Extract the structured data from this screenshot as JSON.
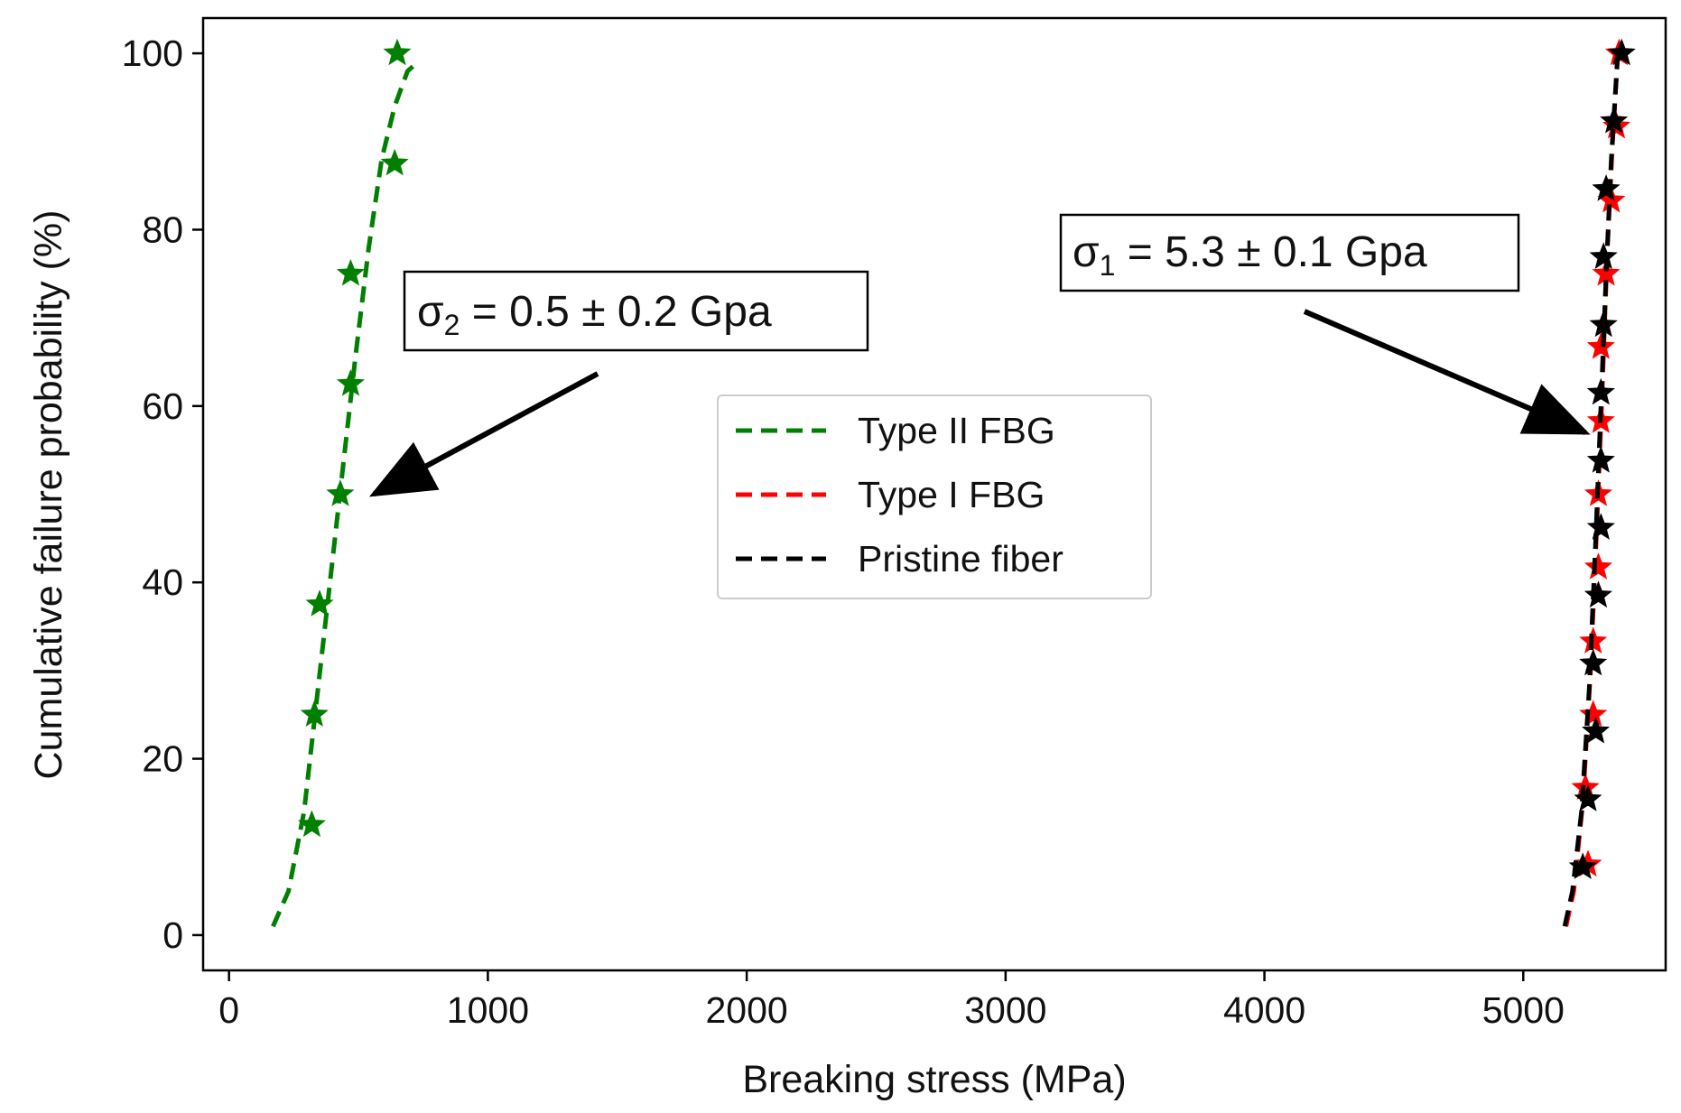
{
  "chart_data": {
    "type": "scatter",
    "xlabel": "Breaking stress (MPa)",
    "ylabel": "Cumulative failure probability (%)",
    "xlim": [
      -100,
      5550
    ],
    "ylim": [
      -4,
      104
    ],
    "xticks": [
      0,
      1000,
      2000,
      3000,
      4000,
      5000
    ],
    "yticks": [
      0,
      20,
      40,
      60,
      80,
      100
    ],
    "grid": false,
    "legend_position": "center",
    "series": [
      {
        "name": "Type II FBG",
        "color": "#007f00",
        "points": [
          {
            "x": 320,
            "y": 12.5
          },
          {
            "x": 330,
            "y": 25
          },
          {
            "x": 350,
            "y": 37.5
          },
          {
            "x": 430,
            "y": 50
          },
          {
            "x": 470,
            "y": 62.5
          },
          {
            "x": 470,
            "y": 75
          },
          {
            "x": 640,
            "y": 87.5
          },
          {
            "x": 650,
            "y": 100
          }
        ],
        "fit": [
          {
            "x": 170,
            "y": 1
          },
          {
            "x": 230,
            "y": 5
          },
          {
            "x": 290,
            "y": 14
          },
          {
            "x": 340,
            "y": 27
          },
          {
            "x": 390,
            "y": 40
          },
          {
            "x": 440,
            "y": 53
          },
          {
            "x": 490,
            "y": 66
          },
          {
            "x": 540,
            "y": 78
          },
          {
            "x": 590,
            "y": 88
          },
          {
            "x": 640,
            "y": 94
          },
          {
            "x": 690,
            "y": 98
          },
          {
            "x": 730,
            "y": 99
          }
        ]
      },
      {
        "name": "Type I FBG",
        "color": "#ff0000",
        "points": [
          {
            "x": 5250,
            "y": 8
          },
          {
            "x": 5240,
            "y": 16.7
          },
          {
            "x": 5270,
            "y": 25
          },
          {
            "x": 5270,
            "y": 33.3
          },
          {
            "x": 5290,
            "y": 41.7
          },
          {
            "x": 5290,
            "y": 50
          },
          {
            "x": 5300,
            "y": 58.3
          },
          {
            "x": 5300,
            "y": 66.7
          },
          {
            "x": 5320,
            "y": 75
          },
          {
            "x": 5340,
            "y": 83.3
          },
          {
            "x": 5360,
            "y": 91.7
          },
          {
            "x": 5370,
            "y": 100
          }
        ],
        "fit": [
          {
            "x": 5165,
            "y": 1
          },
          {
            "x": 5195,
            "y": 5
          },
          {
            "x": 5230,
            "y": 15
          },
          {
            "x": 5260,
            "y": 30
          },
          {
            "x": 5285,
            "y": 47
          },
          {
            "x": 5305,
            "y": 62
          },
          {
            "x": 5325,
            "y": 78
          },
          {
            "x": 5345,
            "y": 90
          },
          {
            "x": 5365,
            "y": 100
          }
        ]
      },
      {
        "name": "Pristine fiber",
        "color": "#000000",
        "points": [
          {
            "x": 5230,
            "y": 7.7
          },
          {
            "x": 5250,
            "y": 15.4
          },
          {
            "x": 5280,
            "y": 23.1
          },
          {
            "x": 5270,
            "y": 30.8
          },
          {
            "x": 5290,
            "y": 38.5
          },
          {
            "x": 5300,
            "y": 46.2
          },
          {
            "x": 5300,
            "y": 53.8
          },
          {
            "x": 5300,
            "y": 61.5
          },
          {
            "x": 5310,
            "y": 69.2
          },
          {
            "x": 5310,
            "y": 76.9
          },
          {
            "x": 5320,
            "y": 84.6
          },
          {
            "x": 5350,
            "y": 92.3
          },
          {
            "x": 5380,
            "y": 100
          }
        ],
        "fit": [
          {
            "x": 5160,
            "y": 1
          },
          {
            "x": 5190,
            "y": 5
          },
          {
            "x": 5225,
            "y": 14
          },
          {
            "x": 5255,
            "y": 28
          },
          {
            "x": 5280,
            "y": 45
          },
          {
            "x": 5300,
            "y": 60
          },
          {
            "x": 5320,
            "y": 75
          },
          {
            "x": 5340,
            "y": 88
          },
          {
            "x": 5365,
            "y": 100
          }
        ]
      }
    ],
    "annotations": [
      {
        "symbol": "σ",
        "subscript": "2",
        "text": " = 0.5 ± 0.2 Gpa",
        "arrow_to": {
          "x": 560,
          "y": 50
        }
      },
      {
        "symbol": "σ",
        "subscript": "1",
        "text": " = 5.3 ± 0.1 Gpa",
        "arrow_to": {
          "x": 5240,
          "y": 57
        }
      }
    ]
  }
}
